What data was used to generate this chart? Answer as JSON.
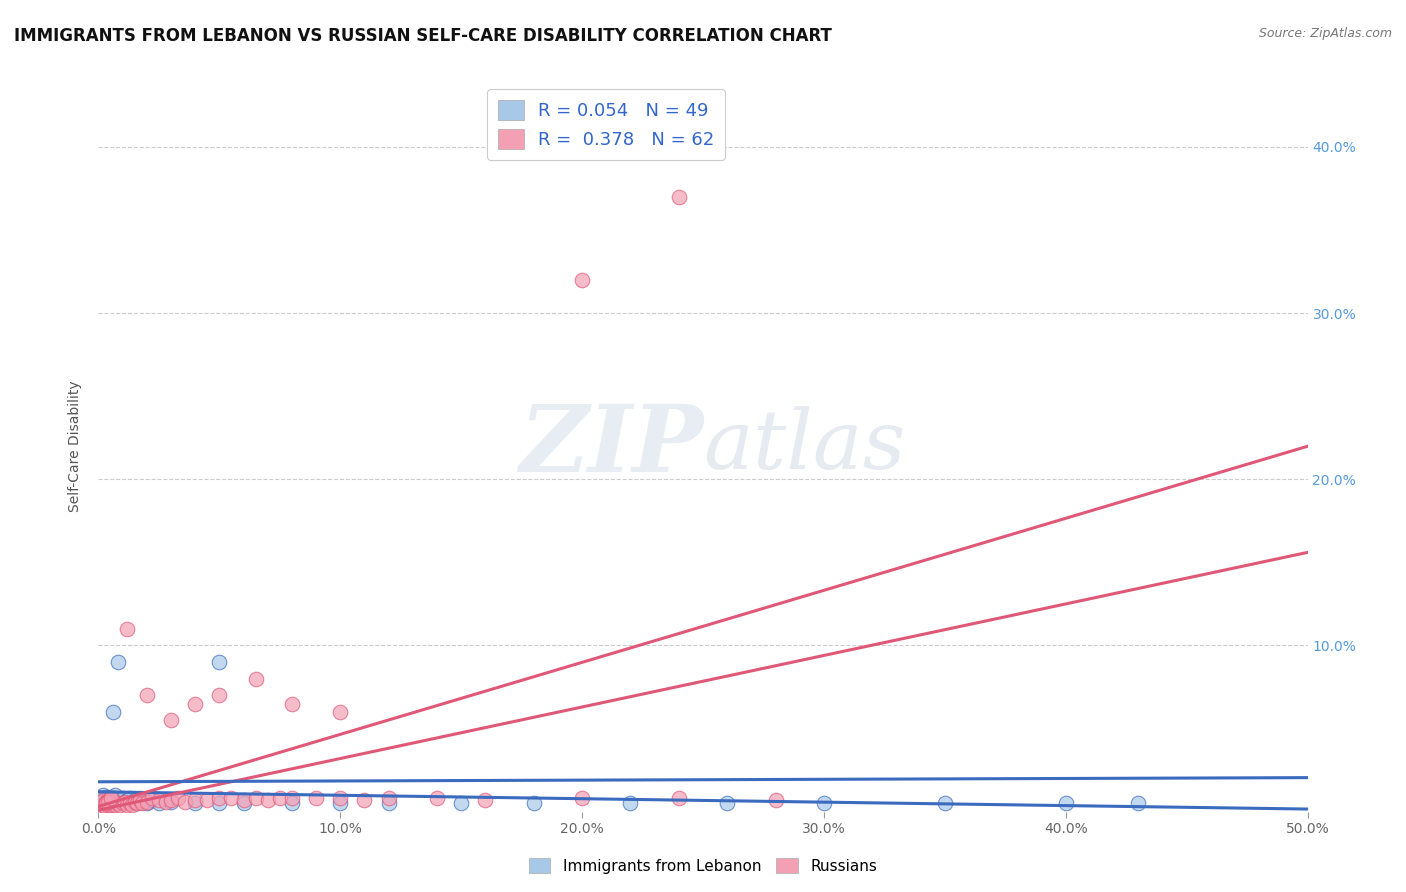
{
  "title": "IMMIGRANTS FROM LEBANON VS RUSSIAN SELF-CARE DISABILITY CORRELATION CHART",
  "source": "Source: ZipAtlas.com",
  "ylabel": "Self-Care Disability",
  "xlim": [
    0.0,
    0.5
  ],
  "ylim": [
    0.0,
    0.44
  ],
  "xtick_labels": [
    "0.0%",
    "10.0%",
    "20.0%",
    "30.0%",
    "40.0%",
    "50.0%"
  ],
  "right_ytick_labels": [
    "10.0%",
    "20.0%",
    "30.0%",
    "40.0%"
  ],
  "legend_line1": "R = 0.054   N = 49",
  "legend_line2": "R =  0.378   N = 62",
  "lebanon_color": "#a8c8e8",
  "lebanon_line_color": "#3a6bbf",
  "russia_color": "#f4a0b4",
  "russia_line_color": "#e05878",
  "background_color": "#ffffff",
  "grid_color": "#cccccc",
  "watermark": "ZIPatlas",
  "title_fontsize": 12,
  "axis_label_fontsize": 10,
  "tick_fontsize": 10,
  "lebanon_x": [
    0.001,
    0.001,
    0.002,
    0.002,
    0.003,
    0.003,
    0.003,
    0.004,
    0.004,
    0.005,
    0.005,
    0.006,
    0.006,
    0.007,
    0.007,
    0.008,
    0.009,
    0.01,
    0.01,
    0.011,
    0.012,
    0.013,
    0.014,
    0.015,
    0.016,
    0.017,
    0.018,
    0.02,
    0.022,
    0.025,
    0.03,
    0.04,
    0.05,
    0.06,
    0.08,
    0.1,
    0.12,
    0.15,
    0.18,
    0.22,
    0.26,
    0.3,
    0.35,
    0.4,
    0.43,
    0.05,
    0.008,
    0.006,
    0.003
  ],
  "lebanon_y": [
    0.005,
    0.008,
    0.006,
    0.01,
    0.004,
    0.007,
    0.009,
    0.005,
    0.008,
    0.006,
    0.009,
    0.005,
    0.008,
    0.007,
    0.01,
    0.006,
    0.007,
    0.005,
    0.008,
    0.006,
    0.007,
    0.008,
    0.005,
    0.007,
    0.005,
    0.007,
    0.006,
    0.005,
    0.007,
    0.005,
    0.006,
    0.005,
    0.005,
    0.005,
    0.005,
    0.005,
    0.005,
    0.005,
    0.005,
    0.005,
    0.005,
    0.005,
    0.005,
    0.005,
    0.005,
    0.09,
    0.09,
    0.06,
    0.005
  ],
  "russia_x": [
    0.001,
    0.001,
    0.002,
    0.002,
    0.003,
    0.003,
    0.004,
    0.004,
    0.005,
    0.005,
    0.006,
    0.006,
    0.007,
    0.008,
    0.009,
    0.01,
    0.011,
    0.012,
    0.013,
    0.014,
    0.015,
    0.016,
    0.017,
    0.018,
    0.02,
    0.022,
    0.025,
    0.028,
    0.03,
    0.033,
    0.036,
    0.04,
    0.045,
    0.05,
    0.055,
    0.06,
    0.065,
    0.07,
    0.075,
    0.08,
    0.09,
    0.1,
    0.11,
    0.12,
    0.14,
    0.16,
    0.2,
    0.24,
    0.28,
    0.003,
    0.004,
    0.005,
    0.012,
    0.02,
    0.03,
    0.04,
    0.05,
    0.065,
    0.08,
    0.1,
    0.2,
    0.24
  ],
  "russia_y": [
    0.003,
    0.006,
    0.004,
    0.007,
    0.003,
    0.006,
    0.004,
    0.007,
    0.004,
    0.006,
    0.005,
    0.007,
    0.004,
    0.005,
    0.004,
    0.005,
    0.006,
    0.004,
    0.005,
    0.004,
    0.006,
    0.005,
    0.007,
    0.005,
    0.006,
    0.008,
    0.007,
    0.006,
    0.007,
    0.008,
    0.006,
    0.007,
    0.007,
    0.008,
    0.008,
    0.007,
    0.008,
    0.007,
    0.008,
    0.008,
    0.008,
    0.008,
    0.007,
    0.008,
    0.008,
    0.007,
    0.008,
    0.008,
    0.007,
    0.005,
    0.006,
    0.008,
    0.11,
    0.07,
    0.055,
    0.065,
    0.07,
    0.08,
    0.065,
    0.06,
    0.32,
    0.37
  ]
}
